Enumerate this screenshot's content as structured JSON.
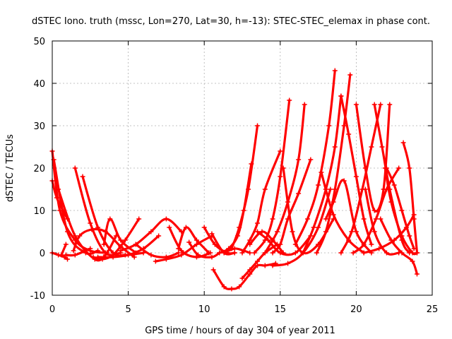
{
  "chart_data": {
    "type": "line",
    "title": "dSTEC Iono. truth (mssc, Lon=270, Lat=30, h=-13): STEC-STEC_elemax in phase cont.",
    "xlabel": "GPS time / hours of day 304 of year 2011",
    "ylabel": "dSTEC  / TECUs",
    "xlim": [
      0,
      25
    ],
    "ylim": [
      -10,
      50
    ],
    "xticks": [
      0,
      5,
      10,
      15,
      20,
      25
    ],
    "yticks": [
      -10,
      0,
      10,
      20,
      30,
      40,
      50
    ],
    "xtick_labels": [
      "0",
      "5",
      "10",
      "15",
      "20",
      "25"
    ],
    "ytick_labels": [
      "-10",
      "0",
      "10",
      "20",
      "30",
      "40",
      "50"
    ],
    "grid": true,
    "legend": "none",
    "marker": "plus",
    "color": "#ff0000",
    "series": [
      {
        "x": [
          0.0,
          0.5,
          1.5,
          2.5,
          3.6
        ],
        "y": [
          24,
          10,
          3,
          0.5,
          0
        ]
      },
      {
        "x": [
          0.0,
          0.3,
          1.0
        ],
        "y": [
          17,
          13,
          8
        ]
      },
      {
        "x": [
          0.1,
          1.0,
          2.2,
          3.0
        ],
        "y": [
          22,
          5,
          0,
          0.5
        ]
      },
      {
        "x": [
          0.4,
          1.5,
          2.8,
          3.5,
          4.2
        ],
        "y": [
          15,
          4,
          -1.5,
          -0.5,
          4
        ]
      },
      {
        "x": [
          0.0,
          0.4,
          0.8,
          1.0
        ],
        "y": [
          0,
          -0.5,
          -1,
          -1.5
        ]
      },
      {
        "x": [
          0.6,
          0.9
        ],
        "y": [
          -0.5,
          2
        ]
      },
      {
        "x": [
          0.9,
          1.5,
          2.5
        ],
        "y": [
          -0.5,
          -0.5,
          1
        ]
      },
      {
        "x": [
          1.4,
          1.8,
          2.6,
          3.5,
          4.5,
          5.4
        ],
        "y": [
          0.5,
          4,
          5.5,
          5,
          1.5,
          -1
        ]
      },
      {
        "x": [
          1.5,
          2.5,
          3.5,
          4.5
        ],
        "y": [
          20,
          7,
          0,
          0
        ]
      },
      {
        "x": [
          2.0,
          3.0,
          4.0,
          4.8,
          6.0
        ],
        "y": [
          18,
          6,
          0,
          -0.5,
          0
        ]
      },
      {
        "x": [
          2.7,
          3.3,
          4.0,
          4.8,
          5.7
        ],
        "y": [
          -1,
          -1.5,
          -0.5,
          3,
          8
        ]
      },
      {
        "x": [
          3.4,
          3.8,
          4.5,
          5.5
        ],
        "y": [
          2,
          8,
          3,
          0
        ]
      },
      {
        "x": [
          3.0,
          4.0,
          5.0,
          6.0,
          7.0
        ],
        "y": [
          -1,
          -1,
          -0.5,
          1,
          4
        ]
      },
      {
        "x": [
          4.5,
          5.5,
          6.5,
          7.5,
          8.5
        ],
        "y": [
          0.5,
          2,
          5,
          8,
          5
        ]
      },
      {
        "x": [
          5.5,
          6.5,
          7.5,
          8.3
        ],
        "y": [
          2,
          -0.5,
          -1,
          0
        ]
      },
      {
        "x": [
          6.8,
          7.5,
          8.5,
          9.5,
          10.5
        ],
        "y": [
          -2,
          -1.5,
          -0.5,
          2,
          4
        ]
      },
      {
        "x": [
          7.7,
          8.5,
          9.5,
          10.4
        ],
        "y": [
          6,
          0.5,
          -1,
          0
        ]
      },
      {
        "x": [
          8.3,
          8.8,
          9.5,
          10.3
        ],
        "y": [
          1,
          6,
          3,
          0
        ]
      },
      {
        "x": [
          9.0,
          9.6,
          10.5,
          11.0
        ],
        "y": [
          2.5,
          -0.5,
          -1,
          0
        ]
      },
      {
        "x": [
          10.0,
          10.7,
          11.5,
          12.0
        ],
        "y": [
          6,
          2,
          0,
          0
        ]
      },
      {
        "x": [
          10.5,
          11.3,
          12.0
        ],
        "y": [
          4.5,
          0,
          0
        ]
      },
      {
        "x": [
          11.0,
          11.6,
          12.2,
          12.6,
          13.1
        ],
        "y": [
          0,
          1,
          4,
          10,
          21
        ]
      },
      {
        "x": [
          11.8,
          12.3,
          12.9,
          13.5
        ],
        "y": [
          1,
          6,
          15,
          30
        ]
      },
      {
        "x": [
          12.5,
          13.0,
          13.5,
          14.0,
          15.0
        ],
        "y": [
          0,
          3,
          7,
          15,
          24
        ]
      },
      {
        "x": [
          13.3,
          14.0,
          14.5,
          15.0,
          15.6
        ],
        "y": [
          0,
          3,
          8,
          18,
          36
        ]
      },
      {
        "x": [
          13.5,
          14.2,
          15.0,
          16.0,
          17.0
        ],
        "y": [
          5,
          3,
          0,
          0,
          4
        ]
      },
      {
        "x": [
          14.0,
          14.8,
          15.5,
          16.2,
          16.6
        ],
        "y": [
          0,
          5,
          12,
          22,
          35
        ]
      },
      {
        "x": [
          14.5,
          15.0,
          15.5,
          16.2,
          17.0
        ],
        "y": [
          0,
          2,
          8,
          14,
          22
        ]
      },
      {
        "x": [
          15.2,
          15.8,
          16.5,
          17.5,
          18.5
        ],
        "y": [
          20,
          5,
          0,
          2,
          8
        ]
      },
      {
        "x": [
          16.0,
          16.8,
          17.5,
          18.2,
          18.6
        ],
        "y": [
          2,
          8,
          16,
          30,
          43
        ]
      },
      {
        "x": [
          16.5,
          17.2,
          18.0,
          18.6,
          19.0
        ],
        "y": [
          0,
          6,
          15,
          25,
          37
        ]
      },
      {
        "x": [
          17.4,
          18.0,
          18.6,
          19.2,
          19.6
        ],
        "y": [
          0,
          5,
          15,
          30,
          42
        ]
      },
      {
        "x": [
          17.7,
          18.5,
          19.5,
          20.5
        ],
        "y": [
          19,
          9,
          3,
          0
        ]
      },
      {
        "x": [
          18.0,
          18.5,
          19.2,
          20.0,
          21.0
        ],
        "y": [
          8,
          12,
          17,
          5,
          0
        ]
      },
      {
        "x": [
          19.0,
          19.5,
          20.0,
          20.5,
          21.0
        ],
        "y": [
          37,
          28,
          18,
          8,
          2
        ]
      },
      {
        "x": [
          19.0,
          19.7,
          20.4,
          21.0,
          21.6
        ],
        "y": [
          0,
          5,
          15,
          25,
          35
        ]
      },
      {
        "x": [
          19.8,
          20.5,
          21.3,
          22.0,
          22.8
        ],
        "y": [
          0,
          2,
          8,
          15,
          20
        ]
      },
      {
        "x": [
          20.0,
          20.6,
          21.2,
          21.8,
          22.2
        ],
        "y": [
          35,
          20,
          10,
          15,
          35
        ]
      },
      {
        "x": [
          20.6,
          21.2,
          22.0,
          22.8
        ],
        "y": [
          15,
          5,
          0,
          0
        ]
      },
      {
        "x": [
          21.2,
          21.7,
          22.2,
          23.0,
          23.5
        ],
        "y": [
          35,
          25,
          15,
          3,
          0
        ]
      },
      {
        "x": [
          21.9,
          22.3,
          23.0,
          23.7,
          24.0
        ],
        "y": [
          20,
          12,
          4,
          0,
          0
        ]
      },
      {
        "x": [
          21.6,
          22.3,
          23.0,
          23.7,
          24.0
        ],
        "y": [
          8,
          3,
          0,
          -2,
          -5
        ]
      },
      {
        "x": [
          20.5,
          21.5,
          22.5,
          23.3,
          23.8
        ],
        "y": [
          0,
          1,
          3,
          6,
          9
        ]
      },
      {
        "x": [
          23.1,
          23.5,
          23.8,
          24.0
        ],
        "y": [
          26,
          20,
          8,
          0
        ]
      },
      {
        "x": [
          14.5,
          15.5,
          16.5,
          17.5,
          18.3
        ],
        "y": [
          -3,
          -2.5,
          0,
          6,
          15
        ]
      },
      {
        "x": [
          10.6,
          11.3,
          11.8,
          12.3,
          13.0,
          13.5,
          14.0,
          14.7
        ],
        "y": [
          -4,
          -8,
          -8.5,
          -8,
          -5,
          -3,
          -3,
          -2.5
        ]
      },
      {
        "x": [
          12.5,
          13.0,
          13.5,
          14.0,
          14.8
        ],
        "y": [
          -6,
          -4,
          -2,
          0,
          2
        ]
      },
      {
        "x": [
          11.3,
          12.0,
          12.6,
          13.0
        ],
        "y": [
          0,
          1,
          0.5,
          0
        ]
      },
      {
        "x": [
          22.0,
          22.5,
          23.0,
          23.5,
          23.8
        ],
        "y": [
          20,
          16,
          10,
          4,
          1
        ]
      },
      {
        "x": [
          13.0,
          13.8,
          14.5,
          15.2
        ],
        "y": [
          2,
          5,
          3,
          0
        ]
      }
    ]
  }
}
